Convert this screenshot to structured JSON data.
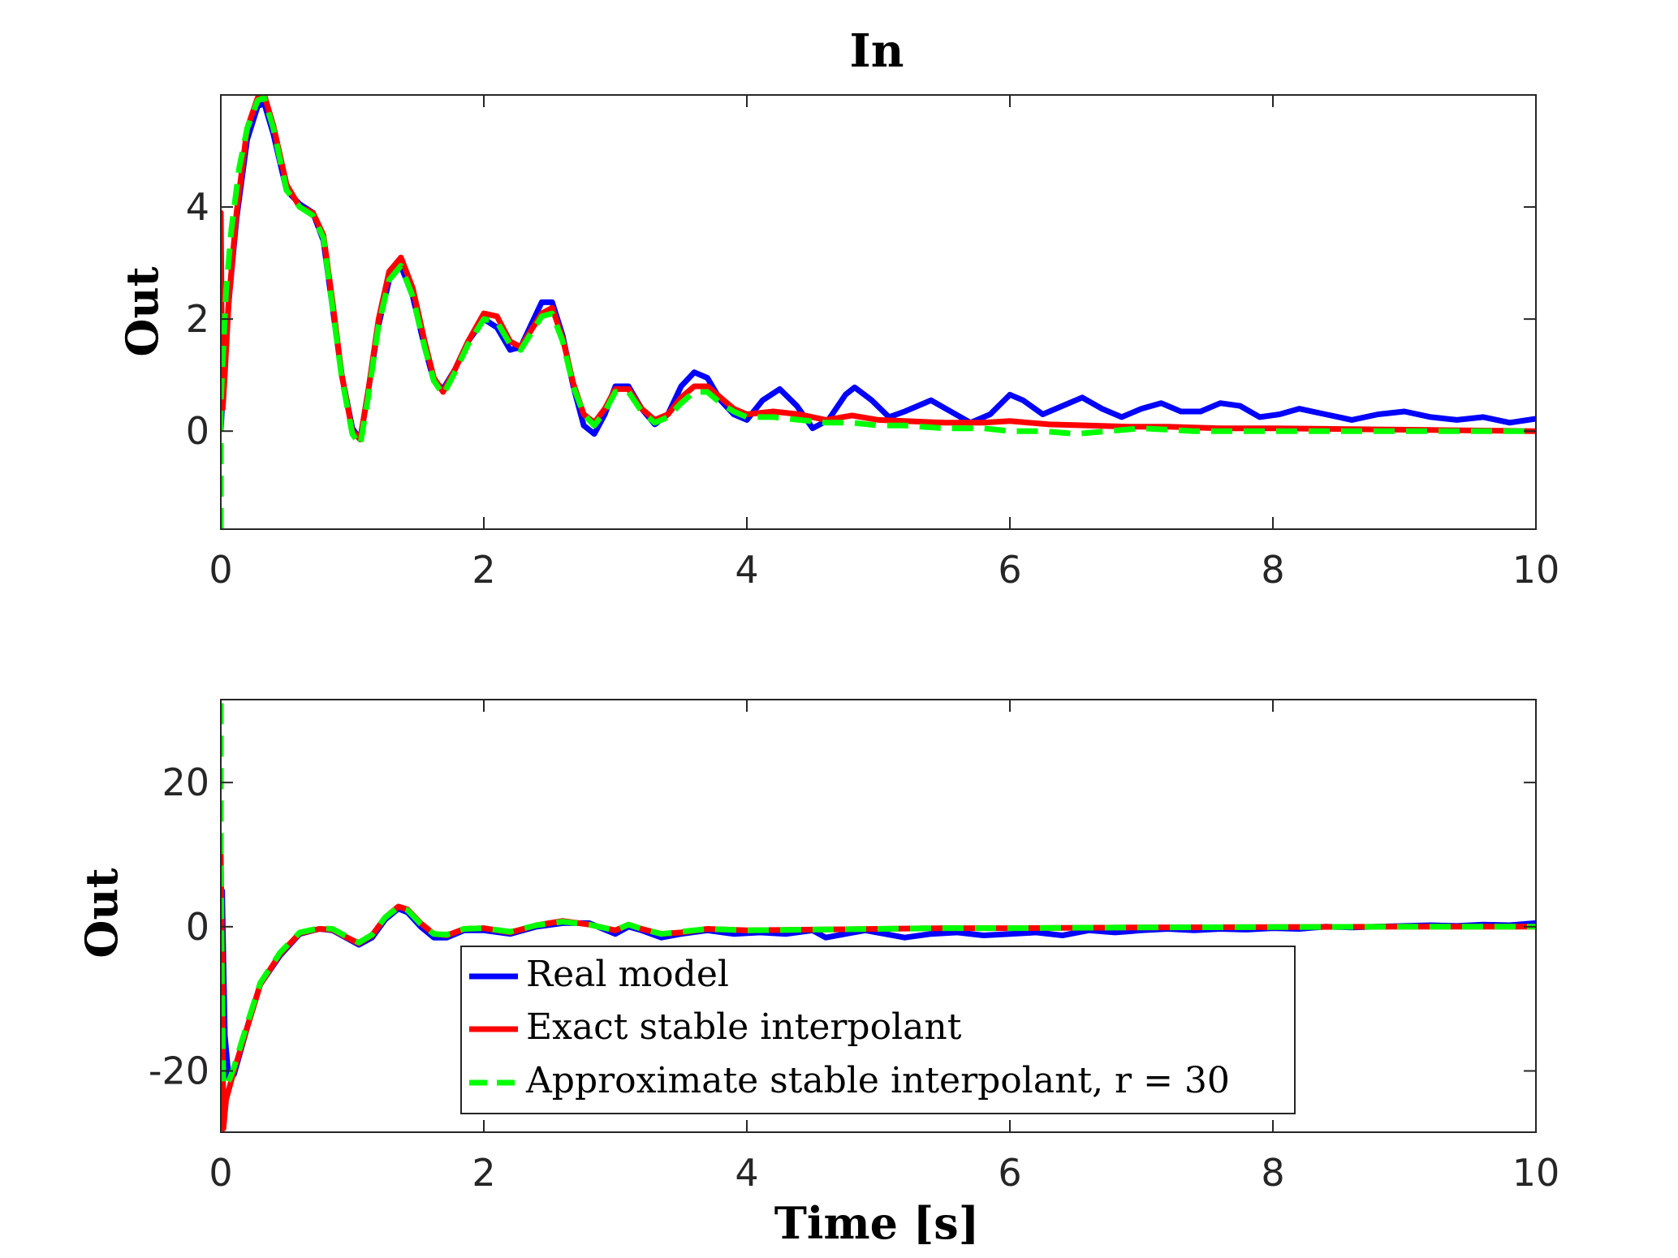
{
  "chart_data": [
    {
      "type": "line",
      "title": "In",
      "xlabel": "",
      "ylabel": "Out",
      "xlim": [
        0,
        10
      ],
      "ylim": [
        -1.75,
        6.0
      ],
      "xticks": [
        0,
        2,
        4,
        6,
        8,
        10
      ],
      "yticks": [
        0,
        2,
        4
      ],
      "grid": false,
      "series": [
        {
          "name": "Real model",
          "color": "#0000ff",
          "style": "solid",
          "x": [
            0,
            0.02,
            0.06,
            0.12,
            0.2,
            0.28,
            0.33,
            0.4,
            0.5,
            0.6,
            0.7,
            0.78,
            0.85,
            0.92,
            1.0,
            1.06,
            1.12,
            1.2,
            1.28,
            1.37,
            1.46,
            1.55,
            1.62,
            1.69,
            1.78,
            1.88,
            2.0,
            2.1,
            2.2,
            2.28,
            2.36,
            2.44,
            2.52,
            2.6,
            2.68,
            2.76,
            2.84,
            2.92,
            3.0,
            3.1,
            3.2,
            3.3,
            3.4,
            3.5,
            3.6,
            3.7,
            3.8,
            3.9,
            4.0,
            4.12,
            4.25,
            4.38,
            4.5,
            4.62,
            4.75,
            4.82,
            4.95,
            5.08,
            5.2,
            5.4,
            5.55,
            5.7,
            5.85,
            6.0,
            6.1,
            6.25,
            6.4,
            6.55,
            6.7,
            6.85,
            7.0,
            7.15,
            7.3,
            7.45,
            7.6,
            7.75,
            7.9,
            8.05,
            8.2,
            8.4,
            8.6,
            8.8,
            9.0,
            9.2,
            9.4,
            9.6,
            9.8,
            10.0
          ],
          "y": [
            0.0,
            0.9,
            2.3,
            3.8,
            5.2,
            5.8,
            5.85,
            5.3,
            4.3,
            4.05,
            3.9,
            3.4,
            2.2,
            1.0,
            0.05,
            -0.15,
            0.7,
            1.9,
            2.7,
            2.95,
            2.4,
            1.5,
            0.9,
            0.75,
            1.1,
            1.6,
            2.0,
            1.85,
            1.45,
            1.5,
            1.9,
            2.3,
            2.3,
            1.7,
            0.8,
            0.1,
            -0.05,
            0.3,
            0.8,
            0.8,
            0.4,
            0.12,
            0.3,
            0.8,
            1.05,
            0.95,
            0.55,
            0.3,
            0.2,
            0.55,
            0.75,
            0.45,
            0.05,
            0.2,
            0.65,
            0.78,
            0.55,
            0.25,
            0.35,
            0.55,
            0.35,
            0.15,
            0.3,
            0.65,
            0.55,
            0.3,
            0.45,
            0.6,
            0.4,
            0.25,
            0.4,
            0.5,
            0.35,
            0.35,
            0.5,
            0.45,
            0.25,
            0.3,
            0.4,
            0.3,
            0.2,
            0.3,
            0.35,
            0.25,
            0.2,
            0.25,
            0.15,
            0.22
          ]
        },
        {
          "name": "Exact stable interpolant",
          "color": "#ff0000",
          "style": "solid",
          "x": [
            0,
            0.0,
            0.01,
            0.015,
            0.03,
            0.06,
            0.12,
            0.2,
            0.28,
            0.33,
            0.4,
            0.5,
            0.6,
            0.7,
            0.78,
            0.85,
            0.92,
            1.0,
            1.06,
            1.12,
            1.2,
            1.28,
            1.37,
            1.46,
            1.55,
            1.62,
            1.69,
            1.78,
            1.88,
            2.0,
            2.1,
            2.2,
            2.28,
            2.36,
            2.44,
            2.52,
            2.6,
            2.68,
            2.76,
            2.84,
            2.92,
            3.0,
            3.1,
            3.2,
            3.3,
            3.4,
            3.5,
            3.6,
            3.7,
            3.8,
            3.9,
            4.0,
            4.2,
            4.4,
            4.6,
            4.8,
            5.0,
            5.2,
            5.5,
            5.8,
            6.0,
            6.3,
            6.6,
            6.9,
            7.2,
            7.6,
            8.0,
            8.4,
            8.8,
            9.2,
            9.6,
            10.0
          ],
          "y": [
            0.0,
            3.9,
            1.0,
            0.4,
            1.0,
            2.3,
            3.9,
            5.4,
            5.95,
            6.0,
            5.45,
            4.4,
            4.0,
            3.9,
            3.5,
            2.3,
            1.0,
            0.0,
            -0.15,
            0.7,
            2.0,
            2.85,
            3.1,
            2.55,
            1.6,
            0.95,
            0.7,
            1.1,
            1.6,
            2.1,
            2.05,
            1.6,
            1.5,
            1.8,
            2.1,
            2.2,
            1.65,
            0.85,
            0.3,
            0.15,
            0.4,
            0.75,
            0.75,
            0.4,
            0.2,
            0.3,
            0.6,
            0.8,
            0.8,
            0.6,
            0.4,
            0.3,
            0.35,
            0.3,
            0.2,
            0.28,
            0.2,
            0.18,
            0.15,
            0.15,
            0.18,
            0.12,
            0.1,
            0.08,
            0.08,
            0.05,
            0.05,
            0.04,
            0.03,
            0.02,
            0.01,
            0.0
          ]
        },
        {
          "name": "Approximate stable interpolant, r = 30",
          "color": "#00ff00",
          "style": "dashed",
          "x": [
            0,
            0.0,
            0.01,
            0.02,
            0.04,
            0.08,
            0.14,
            0.2,
            0.28,
            0.33,
            0.4,
            0.5,
            0.6,
            0.7,
            0.78,
            0.85,
            0.92,
            1.0,
            1.06,
            1.12,
            1.2,
            1.28,
            1.37,
            1.46,
            1.55,
            1.62,
            1.69,
            1.78,
            1.88,
            2.0,
            2.1,
            2.2,
            2.28,
            2.36,
            2.44,
            2.52,
            2.6,
            2.68,
            2.76,
            2.84,
            2.92,
            3.0,
            3.1,
            3.2,
            3.3,
            3.4,
            3.5,
            3.6,
            3.7,
            3.8,
            3.9,
            4.0,
            4.2,
            4.4,
            4.6,
            4.8,
            5.0,
            5.2,
            5.5,
            5.8,
            6.0,
            6.25,
            6.5,
            6.75,
            7.0,
            7.4,
            7.8,
            8.2,
            8.6,
            9.0,
            9.5,
            10.0
          ],
          "y": [
            -1.75,
            0.5,
            1.0,
            1.5,
            2.5,
            3.6,
            4.7,
            5.4,
            5.9,
            5.95,
            5.4,
            4.3,
            4.0,
            3.85,
            3.45,
            2.2,
            0.95,
            -0.05,
            -0.25,
            0.6,
            1.9,
            2.7,
            2.95,
            2.4,
            1.5,
            0.9,
            0.65,
            1.05,
            1.55,
            2.0,
            1.95,
            1.55,
            1.45,
            1.75,
            2.05,
            2.1,
            1.6,
            0.8,
            0.3,
            0.1,
            0.35,
            0.7,
            0.7,
            0.35,
            0.15,
            0.25,
            0.5,
            0.7,
            0.7,
            0.5,
            0.35,
            0.25,
            0.25,
            0.2,
            0.15,
            0.15,
            0.1,
            0.1,
            0.05,
            0.05,
            0.0,
            0.0,
            -0.05,
            0.0,
            0.05,
            0.0,
            0.0,
            0.0,
            0.0,
            0.0,
            0.0,
            0.0
          ]
        }
      ]
    },
    {
      "type": "line",
      "title": "",
      "xlabel": "Time [s]",
      "ylabel": "Out",
      "xlim": [
        0,
        10
      ],
      "ylim": [
        -28.5,
        31.5
      ],
      "xticks": [
        0,
        2,
        4,
        6,
        8,
        10
      ],
      "yticks": [
        -20,
        0,
        20
      ],
      "grid": false,
      "legend": "bottom-center",
      "series": [
        {
          "name": "Real model",
          "color": "#0000ff",
          "style": "solid",
          "x": [
            0,
            0.01,
            0.03,
            0.06,
            0.1,
            0.2,
            0.3,
            0.45,
            0.6,
            0.75,
            0.85,
            0.95,
            1.05,
            1.15,
            1.25,
            1.35,
            1.42,
            1.52,
            1.62,
            1.72,
            1.85,
            2.0,
            2.2,
            2.4,
            2.6,
            2.8,
            3.0,
            3.1,
            3.2,
            3.35,
            3.5,
            3.7,
            3.9,
            4.1,
            4.3,
            4.5,
            4.6,
            4.75,
            4.9,
            5.05,
            5.2,
            5.4,
            5.6,
            5.8,
            6.0,
            6.2,
            6.4,
            6.6,
            6.8,
            7.0,
            7.2,
            7.4,
            7.6,
            7.8,
            8.0,
            8.2,
            8.4,
            8.6,
            8.8,
            9.0,
            9.2,
            9.4,
            9.6,
            9.8,
            10.0
          ],
          "y": [
            0.0,
            5.0,
            -15.0,
            -21.0,
            -20.5,
            -14.0,
            -8.0,
            -4.0,
            -1.0,
            -0.3,
            -0.5,
            -1.5,
            -2.5,
            -1.5,
            1.0,
            2.5,
            2.0,
            0.0,
            -1.5,
            -1.5,
            -0.5,
            -0.5,
            -1.0,
            0.0,
            0.5,
            0.5,
            -1.0,
            0.0,
            -0.5,
            -1.5,
            -1.0,
            -0.5,
            -1.0,
            -0.8,
            -1.0,
            -0.5,
            -1.5,
            -1.0,
            -0.5,
            -1.0,
            -1.5,
            -1.0,
            -0.8,
            -1.2,
            -1.0,
            -0.8,
            -1.2,
            -0.5,
            -0.8,
            -0.5,
            -0.3,
            -0.5,
            -0.3,
            -0.4,
            -0.2,
            -0.3,
            0.0,
            -0.1,
            0.0,
            0.1,
            0.2,
            0.1,
            0.3,
            0.2,
            0.5
          ]
        },
        {
          "name": "Exact stable interpolant",
          "color": "#ff0000",
          "style": "solid",
          "x": [
            0,
            0.0,
            0.01,
            0.02,
            0.04,
            0.07,
            0.1,
            0.2,
            0.3,
            0.45,
            0.6,
            0.75,
            0.85,
            0.95,
            1.05,
            1.15,
            1.25,
            1.35,
            1.42,
            1.52,
            1.62,
            1.72,
            1.85,
            2.0,
            2.2,
            2.4,
            2.6,
            2.8,
            3.0,
            3.1,
            3.2,
            3.35,
            3.5,
            3.7,
            4.0,
            4.5,
            5.0,
            5.5,
            6.0,
            7.0,
            8.0,
            9.0,
            10.0
          ],
          "y": [
            0.0,
            10.0,
            -5.0,
            -28.0,
            -24.0,
            -22.0,
            -20.0,
            -14.0,
            -8.0,
            -3.8,
            -0.9,
            -0.3,
            -0.4,
            -1.4,
            -2.3,
            -1.2,
            1.3,
            2.8,
            2.4,
            0.5,
            -1.0,
            -1.2,
            -0.3,
            -0.2,
            -0.8,
            0.2,
            0.8,
            0.3,
            -0.5,
            0.3,
            -0.3,
            -1.0,
            -0.8,
            -0.3,
            -0.5,
            -0.4,
            -0.3,
            -0.2,
            -0.2,
            -0.1,
            -0.05,
            0.0,
            0.0
          ]
        },
        {
          "name": "Approximate stable interpolant, r = 30",
          "color": "#00ff00",
          "style": "dashed",
          "x": [
            0,
            0.0,
            0.01,
            0.02,
            0.04,
            0.07,
            0.1,
            0.2,
            0.3,
            0.45,
            0.6,
            0.75,
            0.85,
            0.95,
            1.05,
            1.15,
            1.25,
            1.35,
            1.42,
            1.52,
            1.62,
            1.72,
            1.85,
            2.0,
            2.2,
            2.4,
            2.6,
            2.8,
            3.0,
            3.1,
            3.2,
            3.35,
            3.5,
            3.7,
            4.0,
            4.5,
            5.0,
            5.5,
            6.0,
            7.0,
            8.0,
            9.0,
            10.0
          ],
          "y": [
            31.0,
            10.0,
            -10.0,
            -22.0,
            -22.0,
            -21.0,
            -19.5,
            -13.5,
            -7.8,
            -3.6,
            -0.8,
            -0.2,
            -0.3,
            -1.3,
            -2.2,
            -1.1,
            1.3,
            2.7,
            2.3,
            0.4,
            -1.0,
            -1.1,
            -0.3,
            -0.2,
            -0.7,
            0.2,
            0.7,
            0.3,
            -0.5,
            0.3,
            -0.3,
            -1.0,
            -0.7,
            -0.3,
            -0.5,
            -0.4,
            -0.3,
            -0.2,
            -0.2,
            -0.1,
            -0.05,
            0.0,
            0.0
          ]
        }
      ]
    }
  ]
}
